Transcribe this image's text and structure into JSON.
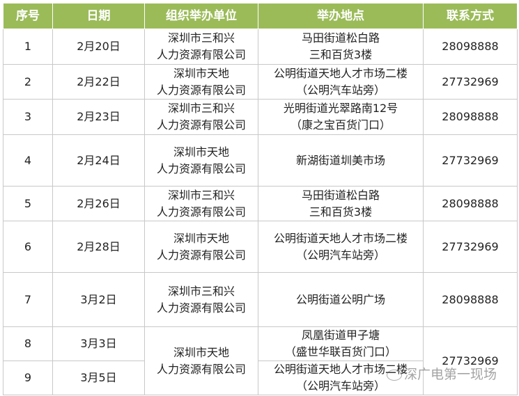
{
  "header_color": "#9bbb59",
  "headers": [
    "序号",
    "日期",
    "组织举办单位",
    "举办地点",
    "联系方式"
  ],
  "rows": [
    {
      "no": "1",
      "date": "2月20日",
      "org": [
        "深圳市三和兴",
        "人力资源有限公司"
      ],
      "place": [
        "马田街道松白路",
        "三和百货3楼"
      ],
      "phone": "28098888"
    },
    {
      "no": "2",
      "date": "2月22日",
      "org": [
        "深圳市天地",
        "人力资源有限公司"
      ],
      "place": [
        "公明街道天地人才市场二楼",
        "（公明汽车站旁）"
      ],
      "phone": "27732969"
    },
    {
      "no": "3",
      "date": "2月23日",
      "org": [
        "深圳市三和兴",
        "人力资源有限公司"
      ],
      "place": [
        "光明街道光翠路南12号",
        "（康之宝百货门口）"
      ],
      "phone": "28098888"
    },
    {
      "no": "4",
      "date": "2月24日",
      "org": [
        "深圳市天地",
        "人力资源有限公司"
      ],
      "place": [
        "新湖街道圳美市场",
        ""
      ],
      "phone": "27732969"
    },
    {
      "no": "5",
      "date": "2月26日",
      "org": [
        "深圳市三和兴",
        "人力资源有限公司"
      ],
      "place": [
        "马田街道松白路",
        "三和百货3楼"
      ],
      "phone": "28098888"
    },
    {
      "no": "6",
      "date": "2月28日",
      "org": [
        "深圳市天地",
        "人力资源有限公司"
      ],
      "place": [
        "公明街道天地人才市场二楼",
        "（公明汽车站旁）"
      ],
      "phone": "27732969"
    },
    {
      "no": "7",
      "date": "3月2日",
      "org": [
        "深圳市三和兴",
        "人力资源有限公司"
      ],
      "place": [
        "公明街道公明广场",
        ""
      ],
      "phone": "28098888"
    },
    {
      "no": "8",
      "date": "3月3日",
      "org": [
        "深圳市天地",
        "人力资源有限公司"
      ],
      "place": [
        "凤凰街道甲子塘",
        "（盛世华联百货门口）"
      ],
      "phone": "27732969"
    },
    {
      "no": "9",
      "date": "3月5日",
      "place": [
        "公明街道天地人才市场二楼",
        "（公明汽车站旁）"
      ]
    }
  ],
  "watermark": "深广电第一现场"
}
